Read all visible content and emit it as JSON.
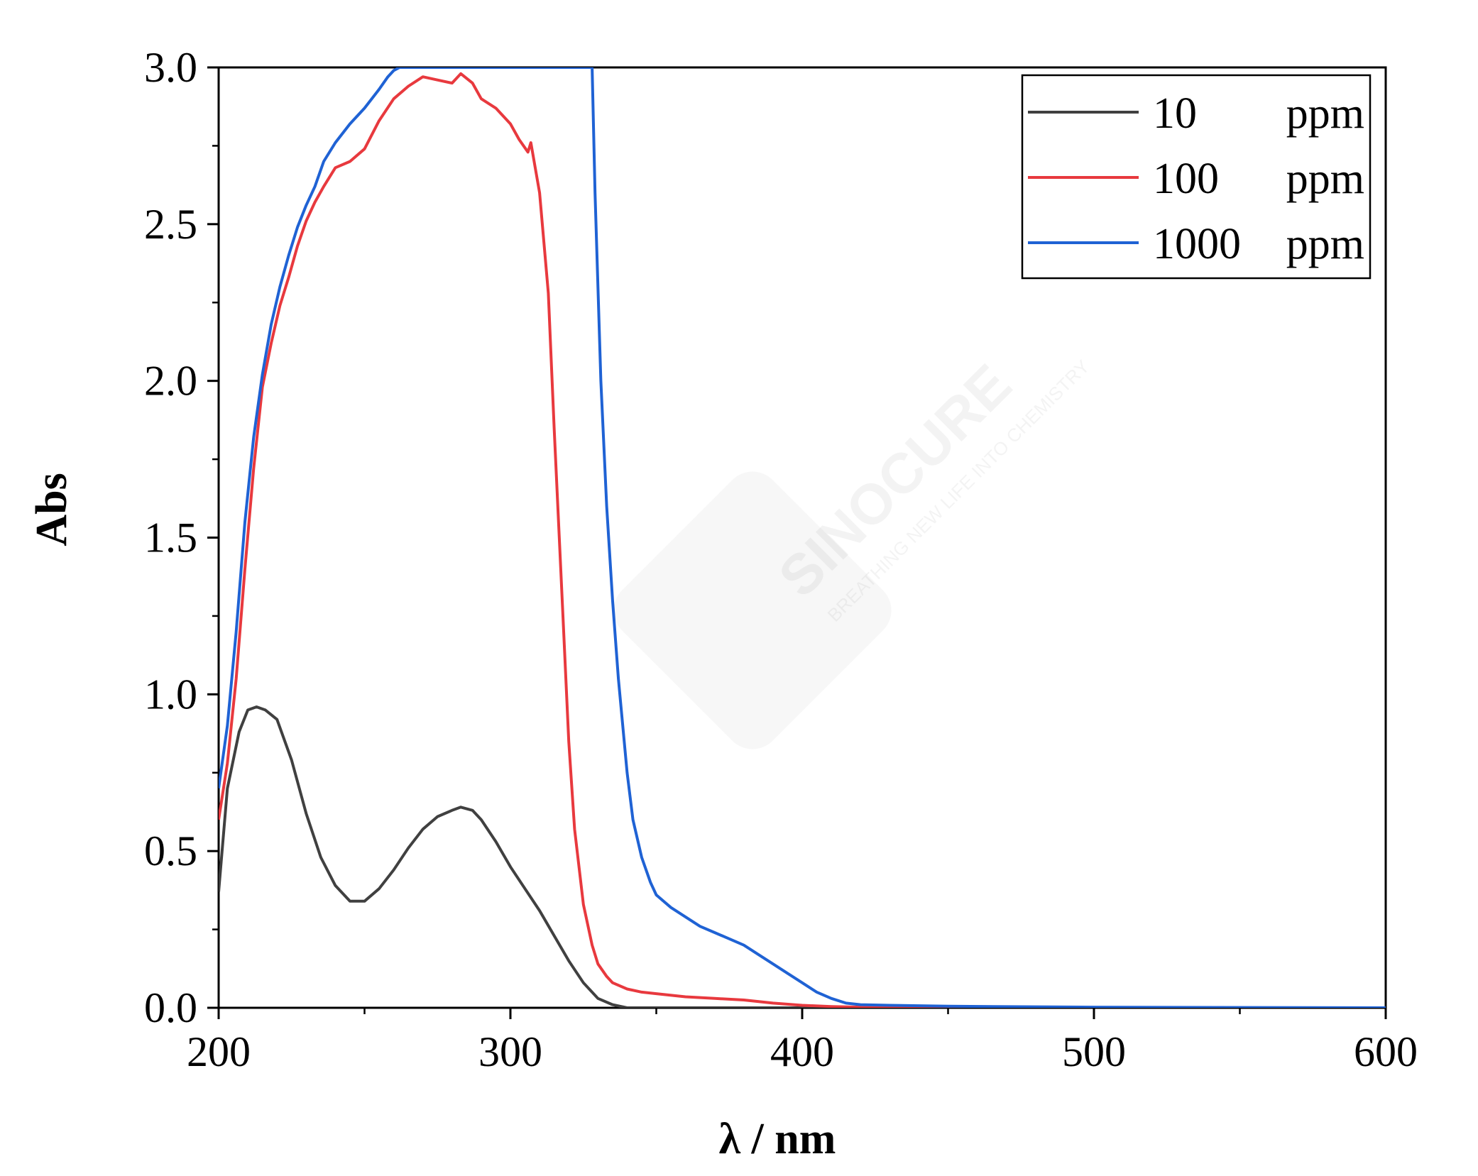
{
  "watermark": {
    "brand": "SINOCURE",
    "tagline": "BREATHING NEW LIFE INTO CHEMISTRY"
  },
  "chart_data": {
    "type": "line",
    "title": "",
    "xlabel": "λ / nm",
    "ylabel": "Abs",
    "xlim": [
      200,
      600
    ],
    "ylim": [
      0,
      3.0
    ],
    "x_ticks": [
      200,
      300,
      400,
      500,
      600
    ],
    "x_tick_labels": [
      "200",
      "300",
      "400",
      "500",
      "600"
    ],
    "y_ticks": [
      0,
      0.5,
      1.0,
      1.5,
      2.0,
      2.5,
      3.0
    ],
    "y_tick_labels": [
      "0.0",
      "0.5",
      "1.0",
      "1.5",
      "2.0",
      "2.5",
      "3.0"
    ],
    "grid": false,
    "legend": {
      "position": "top-right",
      "entries": [
        {
          "label": "10",
          "unit": "ppm"
        },
        {
          "label": "100",
          "unit": "ppm"
        },
        {
          "label": "1000",
          "unit": "ppm"
        }
      ]
    },
    "series": [
      {
        "name": "10 ppm",
        "color": "#404040",
        "x": [
          200,
          203,
          207,
          210,
          213,
          216,
          220,
          225,
          230,
          235,
          240,
          245,
          250,
          255,
          260,
          265,
          270,
          275,
          280,
          283,
          287,
          290,
          295,
          300,
          305,
          310,
          315,
          320,
          325,
          330,
          335,
          340,
          350,
          360,
          380,
          400,
          450,
          500,
          550,
          600
        ],
        "y": [
          0.37,
          0.7,
          0.88,
          0.95,
          0.96,
          0.95,
          0.92,
          0.79,
          0.62,
          0.48,
          0.39,
          0.34,
          0.34,
          0.38,
          0.44,
          0.51,
          0.57,
          0.61,
          0.63,
          0.64,
          0.63,
          0.6,
          0.53,
          0.45,
          0.38,
          0.31,
          0.23,
          0.15,
          0.08,
          0.03,
          0.01,
          0.0,
          0.0,
          0.0,
          0.0,
          0.0,
          0.0,
          0.0,
          0.0,
          0.0
        ]
      },
      {
        "name": "100 ppm",
        "color": "#e8393e",
        "x": [
          200,
          203,
          206,
          209,
          212,
          215,
          218,
          221,
          224,
          227,
          230,
          233,
          236,
          240,
          245,
          250,
          255,
          260,
          265,
          270,
          275,
          280,
          283,
          287,
          290,
          295,
          300,
          303,
          306,
          307,
          310,
          313,
          315,
          318,
          320,
          322,
          325,
          328,
          330,
          333,
          335,
          340,
          345,
          350,
          360,
          370,
          380,
          390,
          400,
          410,
          420,
          450,
          500,
          600
        ],
        "y": [
          0.6,
          0.78,
          1.05,
          1.4,
          1.72,
          1.98,
          2.12,
          2.24,
          2.33,
          2.43,
          2.51,
          2.57,
          2.62,
          2.68,
          2.7,
          2.74,
          2.83,
          2.9,
          2.94,
          2.97,
          2.96,
          2.95,
          2.98,
          2.95,
          2.9,
          2.87,
          2.82,
          2.77,
          2.73,
          2.76,
          2.6,
          2.28,
          1.85,
          1.25,
          0.85,
          0.57,
          0.33,
          0.2,
          0.14,
          0.1,
          0.08,
          0.06,
          0.05,
          0.045,
          0.035,
          0.03,
          0.025,
          0.015,
          0.008,
          0.004,
          0.002,
          0.001,
          0.0,
          0.0
        ]
      },
      {
        "name": "1000 ppm",
        "color": "#1f62d4",
        "x": [
          200,
          203,
          206,
          209,
          212,
          215,
          218,
          221,
          224,
          227,
          230,
          233,
          236,
          240,
          245,
          250,
          255,
          258,
          260,
          262,
          265,
          325,
          328,
          329,
          331,
          333,
          335,
          337,
          340,
          342,
          345,
          348,
          350,
          355,
          360,
          365,
          370,
          375,
          380,
          385,
          390,
          395,
          400,
          405,
          410,
          415,
          420,
          430,
          450,
          500,
          600
        ],
        "y": [
          0.7,
          0.9,
          1.2,
          1.55,
          1.82,
          2.02,
          2.18,
          2.3,
          2.4,
          2.49,
          2.56,
          2.62,
          2.7,
          2.76,
          2.82,
          2.87,
          2.93,
          2.97,
          2.99,
          3.0,
          3.0,
          3.0,
          3.0,
          2.6,
          2.0,
          1.6,
          1.3,
          1.05,
          0.75,
          0.6,
          0.48,
          0.4,
          0.36,
          0.32,
          0.29,
          0.26,
          0.24,
          0.22,
          0.2,
          0.17,
          0.14,
          0.11,
          0.08,
          0.05,
          0.03,
          0.015,
          0.01,
          0.008,
          0.005,
          0.002,
          0.0
        ]
      }
    ]
  }
}
